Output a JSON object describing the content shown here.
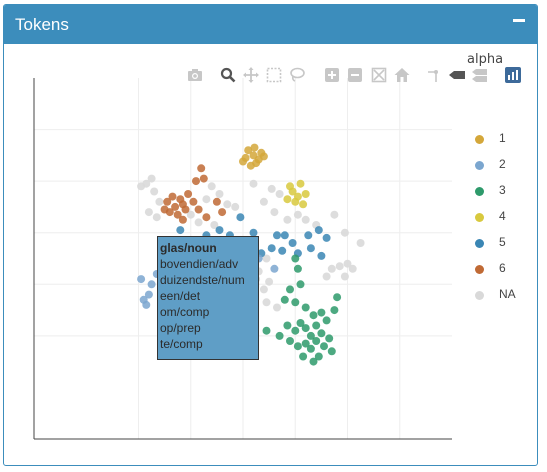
{
  "panel": {
    "title": "Tokens",
    "collapse_icon": "minus-icon"
  },
  "toolbar": {
    "buttons": [
      {
        "name": "camera-icon",
        "title": "Download plot as a png"
      },
      {
        "name": "zoom-icon",
        "title": "Zoom"
      },
      {
        "name": "pan-icon",
        "title": "Pan"
      },
      {
        "name": "box-select-icon",
        "title": "Box Select"
      },
      {
        "name": "lasso-select-icon",
        "title": "Lasso Select"
      },
      {
        "name": "zoom-in-icon",
        "title": "Zoom in"
      },
      {
        "name": "zoom-out-icon",
        "title": "Zoom out"
      },
      {
        "name": "autoscale-icon",
        "title": "Autoscale"
      },
      {
        "name": "home-icon",
        "title": "Reset axes"
      },
      {
        "name": "spike-lines-icon",
        "title": "Toggle Spike Lines"
      },
      {
        "name": "hover-closest-icon",
        "title": "Show closest data on hover"
      },
      {
        "name": "hover-compare-icon",
        "title": "Compare data on hover"
      },
      {
        "name": "plotly-logo-icon",
        "title": "Produced with Plotly"
      }
    ],
    "alpha_label": "alpha"
  },
  "tooltip": {
    "title": "glas/noun",
    "lines": [
      "bovendien/adv",
      "duizendste/num",
      "een/det",
      "om/comp",
      "op/prep",
      "te/comp"
    ]
  },
  "legend": {
    "items": [
      {
        "label": "1",
        "color": "#d4a73a"
      },
      {
        "label": "2",
        "color": "#7ba6cf"
      },
      {
        "label": "3",
        "color": "#2e9a6b"
      },
      {
        "label": "4",
        "color": "#d8c93e"
      },
      {
        "label": "5",
        "color": "#3a86b4"
      },
      {
        "label": "6",
        "color": "#c06a35"
      },
      {
        "label": "NA",
        "color": "#d9d9d9"
      }
    ]
  },
  "chart_data": {
    "type": "scatter",
    "title": "",
    "xlabel": "",
    "ylabel": "",
    "xlim": [
      0,
      8
    ],
    "ylim": [
      0,
      7
    ],
    "grid": true,
    "legend_position": "right",
    "series": [
      {
        "name": "1",
        "color": "#d4a73a",
        "points": [
          [
            4.05,
            5.45
          ],
          [
            4.2,
            5.5
          ],
          [
            4.3,
            5.42
          ],
          [
            4.1,
            5.6
          ],
          [
            4.25,
            5.35
          ],
          [
            4.35,
            5.55
          ],
          [
            4.15,
            5.3
          ],
          [
            4.4,
            5.48
          ],
          [
            4.0,
            5.38
          ],
          [
            4.22,
            5.65
          ]
        ]
      },
      {
        "name": "2",
        "color": "#7ba6cf",
        "points": [
          [
            2.05,
            3.1
          ],
          [
            2.2,
            2.8
          ],
          [
            2.15,
            2.6
          ],
          [
            2.35,
            3.2
          ],
          [
            2.1,
            2.7
          ],
          [
            2.25,
            3.0
          ],
          [
            2.45,
            2.55
          ],
          [
            4.3,
            3.5
          ],
          [
            4.6,
            3.3
          ]
        ]
      },
      {
        "name": "3",
        "color": "#2e9a6b",
        "points": [
          [
            5.0,
            3.5
          ],
          [
            5.05,
            3.3
          ],
          [
            4.9,
            2.9
          ],
          [
            5.1,
            3.0
          ],
          [
            4.8,
            2.7
          ],
          [
            5.0,
            2.65
          ],
          [
            5.2,
            2.55
          ],
          [
            5.35,
            2.4
          ],
          [
            5.5,
            2.45
          ],
          [
            5.6,
            2.3
          ],
          [
            5.4,
            2.2
          ],
          [
            5.2,
            2.15
          ],
          [
            5.0,
            2.1
          ],
          [
            4.85,
            2.2
          ],
          [
            5.1,
            2.25
          ],
          [
            5.3,
            2.0
          ],
          [
            5.5,
            2.05
          ],
          [
            5.65,
            1.95
          ],
          [
            5.55,
            1.8
          ],
          [
            5.3,
            1.75
          ],
          [
            5.05,
            1.8
          ],
          [
            4.9,
            1.9
          ],
          [
            5.15,
            1.6
          ],
          [
            5.35,
            1.5
          ],
          [
            5.45,
            1.6
          ],
          [
            5.7,
            1.7
          ],
          [
            5.75,
            2.5
          ],
          [
            5.8,
            2.75
          ],
          [
            4.7,
            2.0
          ],
          [
            4.45,
            2.1
          ],
          [
            5.2,
            1.85
          ],
          [
            5.4,
            1.9
          ]
        ]
      },
      {
        "name": "4",
        "color": "#d8c93e",
        "points": [
          [
            4.95,
            4.8
          ],
          [
            5.1,
            4.95
          ],
          [
            5.2,
            4.75
          ],
          [
            5.0,
            4.6
          ],
          [
            4.85,
            4.65
          ],
          [
            5.15,
            4.55
          ],
          [
            4.9,
            4.9
          ],
          [
            5.05,
            4.7
          ]
        ]
      },
      {
        "name": "5",
        "color": "#3a86b4",
        "points": [
          [
            3.95,
            4.3
          ],
          [
            4.2,
            4.0
          ],
          [
            4.05,
            3.85
          ],
          [
            4.35,
            3.6
          ],
          [
            4.55,
            3.7
          ],
          [
            4.8,
            3.95
          ],
          [
            4.95,
            3.8
          ],
          [
            5.05,
            3.6
          ],
          [
            5.3,
            3.7
          ],
          [
            5.5,
            3.55
          ],
          [
            5.6,
            3.9
          ],
          [
            5.45,
            4.05
          ],
          [
            5.25,
            3.95
          ],
          [
            4.65,
            3.95
          ],
          [
            4.75,
            3.65
          ],
          [
            3.75,
            3.95
          ],
          [
            3.55,
            4.05
          ],
          [
            3.3,
            3.95
          ],
          [
            2.8,
            4.05
          ]
        ]
      },
      {
        "name": "6",
        "color": "#c06a35",
        "points": [
          [
            2.55,
            4.6
          ],
          [
            2.7,
            4.5
          ],
          [
            2.85,
            4.55
          ],
          [
            2.6,
            4.4
          ],
          [
            2.75,
            4.35
          ],
          [
            2.9,
            4.45
          ],
          [
            3.05,
            4.6
          ],
          [
            2.65,
            4.7
          ],
          [
            2.95,
            4.75
          ],
          [
            2.8,
            4.65
          ],
          [
            3.15,
            4.45
          ],
          [
            2.5,
            4.45
          ],
          [
            3.3,
            4.3
          ],
          [
            3.5,
            4.6
          ],
          [
            3.6,
            4.4
          ],
          [
            3.25,
            5.05
          ],
          [
            3.1,
            5.0
          ],
          [
            3.2,
            5.25
          ],
          [
            2.85,
            4.25
          ]
        ]
      },
      {
        "name": "NA",
        "color": "#d9d9d9",
        "points": [
          [
            2.15,
            4.95
          ],
          [
            2.25,
            5.05
          ],
          [
            2.05,
            4.9
          ],
          [
            2.3,
            4.8
          ],
          [
            2.4,
            4.6
          ],
          [
            2.2,
            4.4
          ],
          [
            2.35,
            4.3
          ],
          [
            3.4,
            4.9
          ],
          [
            3.55,
            4.75
          ],
          [
            3.7,
            4.55
          ],
          [
            3.85,
            4.5
          ],
          [
            3.3,
            4.65
          ],
          [
            3.0,
            4.35
          ],
          [
            3.15,
            4.2
          ],
          [
            4.2,
            4.95
          ],
          [
            4.55,
            4.85
          ],
          [
            4.4,
            4.6
          ],
          [
            4.6,
            4.4
          ],
          [
            4.85,
            4.25
          ],
          [
            5.05,
            4.35
          ],
          [
            5.2,
            4.25
          ],
          [
            5.4,
            4.15
          ],
          [
            4.7,
            4.75
          ],
          [
            3.45,
            4.15
          ],
          [
            3.95,
            3.7
          ],
          [
            4.45,
            3.5
          ],
          [
            4.3,
            3.25
          ],
          [
            4.5,
            3.05
          ],
          [
            4.4,
            2.9
          ],
          [
            4.2,
            2.75
          ],
          [
            4.45,
            2.65
          ],
          [
            4.65,
            2.55
          ],
          [
            4.05,
            2.85
          ],
          [
            4.25,
            3.1
          ],
          [
            5.7,
            3.3
          ],
          [
            5.85,
            3.35
          ],
          [
            6.0,
            3.4
          ],
          [
            6.1,
            3.3
          ],
          [
            5.95,
            3.15
          ],
          [
            5.6,
            3.15
          ],
          [
            6.25,
            3.8
          ],
          [
            5.75,
            4.35
          ],
          [
            5.95,
            4.0
          ],
          [
            3.9,
            2.45
          ],
          [
            3.85,
            3.45
          ]
        ]
      }
    ]
  }
}
